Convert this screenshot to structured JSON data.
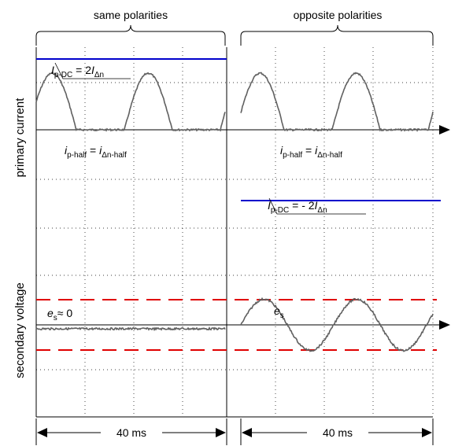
{
  "chart_data": {
    "type": "line",
    "ylabels": [
      "primary current",
      "secondary voltage"
    ],
    "sections": [
      {
        "label": "same polarities",
        "duration_label": "40 ms"
      },
      {
        "label": "opposite polarities",
        "duration_label": "40 ms"
      }
    ],
    "primary_current": {
      "same_polarities": {
        "dc_main": "I",
        "dc_sub": "p-DC",
        "dc_rel": " = 2",
        "dc_ref": "I",
        "dc_ref_sub": "Δn",
        "dc_level": 2.0,
        "half_main": "i",
        "half_sub": "p-half",
        "half_rel": " = ",
        "half_ref": "i",
        "half_ref_sub": "Δn-half",
        "half_wave_peak": 1.6
      },
      "opposite_polarities": {
        "dc_main": "I",
        "dc_sub": "p-DC",
        "dc_rel": " = - 2",
        "dc_ref": "I",
        "dc_ref_sub": "Δn",
        "dc_level": -2.0,
        "half_main": "i",
        "half_sub": "p-half",
        "half_rel": " = ",
        "half_ref": "i",
        "half_ref_sub": "Δn-half",
        "half_wave_peak": 1.6
      }
    },
    "secondary_voltage": {
      "same_polarities": {
        "main": "e",
        "sub": "s",
        "rel": "≈ 0"
      },
      "opposite_polarities": {
        "main": "e",
        "sub": "s"
      },
      "limit_level": 1.0,
      "wave_peak": 0.85
    },
    "colors": {
      "dc_line": "#0000cc",
      "limits": "#e00000",
      "trace": "#606060",
      "grid": "#000000"
    },
    "grid": true
  }
}
